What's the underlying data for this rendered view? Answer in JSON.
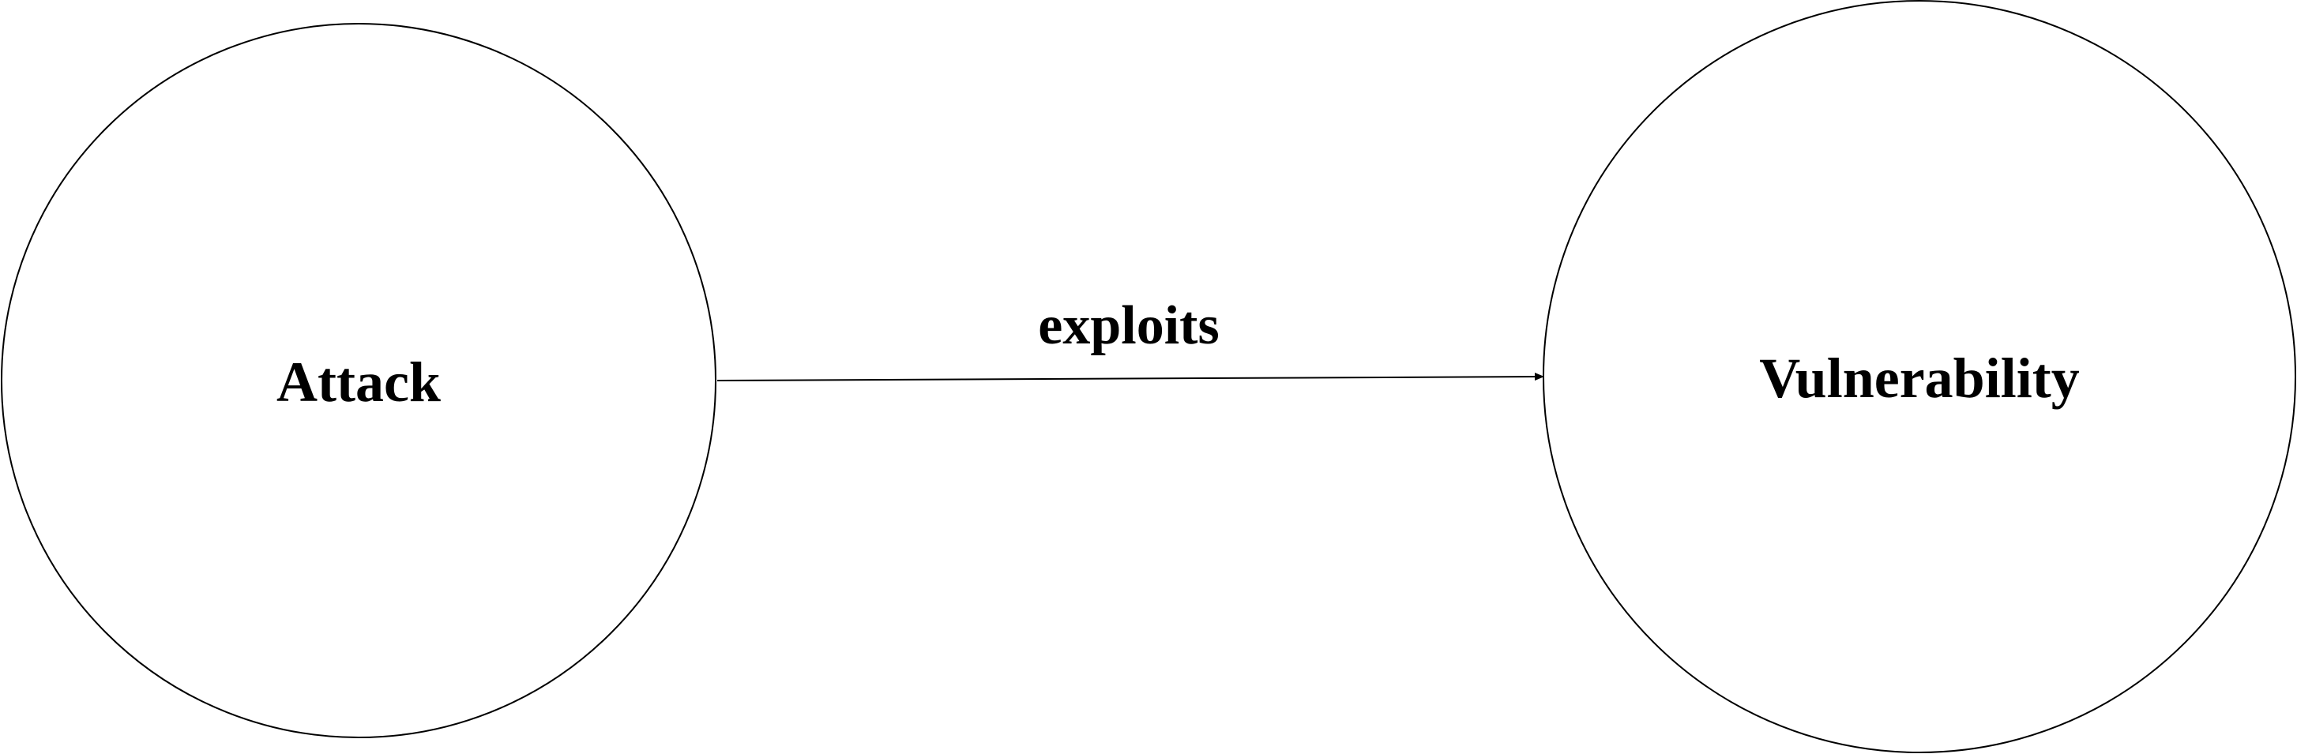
{
  "diagram": {
    "nodes": [
      {
        "id": "attack",
        "label": "Attack"
      },
      {
        "id": "vulnerability",
        "label": "Vulnerability"
      }
    ],
    "edges": [
      {
        "from": "attack",
        "to": "vulnerability",
        "label": "exploits"
      }
    ]
  },
  "colors": {
    "stroke": "#000000",
    "background": "#ffffff"
  }
}
